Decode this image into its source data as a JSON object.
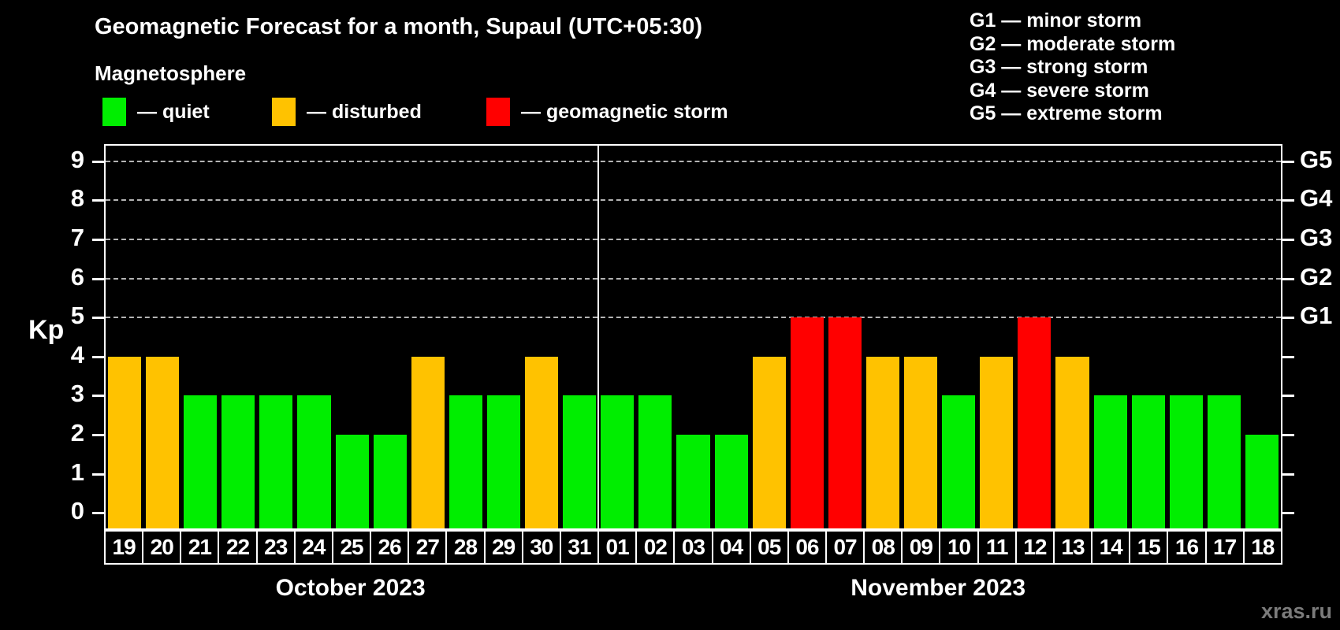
{
  "header": {
    "title": "Geomagnetic Forecast for a month, Supaul (UTC+05:30)"
  },
  "magnetosphere_legend": {
    "title": "Magnetosphere",
    "items": [
      {
        "key": "quiet",
        "label": "— quiet",
        "color": "#00ee00"
      },
      {
        "key": "disturbed",
        "label": "— disturbed",
        "color": "#ffc200"
      },
      {
        "key": "storm",
        "label": "— geomagnetic storm",
        "color": "#ff0000"
      }
    ]
  },
  "g_scale_legend": {
    "items": [
      "G1 — minor storm",
      "G2 — moderate storm",
      "G3 — strong storm",
      "G4 — severe storm",
      "G5 — extreme storm"
    ]
  },
  "chart_data": {
    "type": "bar",
    "title": "Geomagnetic Forecast for a month, Supaul (UTC+05:30)",
    "ylabel": "Kp",
    "y_ticks": [
      0,
      1,
      2,
      3,
      4,
      5,
      6,
      7,
      8,
      9
    ],
    "ylim": [
      -0.4,
      9.4
    ],
    "grid_levels": [
      5,
      6,
      7,
      8,
      9
    ],
    "grid_on": true,
    "right_axis_ticks": [
      {
        "kp": 5,
        "label": "G1"
      },
      {
        "kp": 6,
        "label": "G2"
      },
      {
        "kp": 7,
        "label": "G3"
      },
      {
        "kp": 8,
        "label": "G4"
      },
      {
        "kp": 9,
        "label": "G5"
      }
    ],
    "colors": {
      "quiet": "#00ee00",
      "disturbed": "#ffc200",
      "storm": "#ff0000"
    },
    "months": [
      {
        "label": "October 2023",
        "days": 13
      },
      {
        "label": "November 2023",
        "days": 18
      }
    ],
    "bars": [
      {
        "day": "19",
        "kp": 4,
        "status": "disturbed"
      },
      {
        "day": "20",
        "kp": 4,
        "status": "disturbed"
      },
      {
        "day": "21",
        "kp": 3,
        "status": "quiet"
      },
      {
        "day": "22",
        "kp": 3,
        "status": "quiet"
      },
      {
        "day": "23",
        "kp": 3,
        "status": "quiet"
      },
      {
        "day": "24",
        "kp": 3,
        "status": "quiet"
      },
      {
        "day": "25",
        "kp": 2,
        "status": "quiet"
      },
      {
        "day": "26",
        "kp": 2,
        "status": "quiet"
      },
      {
        "day": "27",
        "kp": 4,
        "status": "disturbed"
      },
      {
        "day": "28",
        "kp": 3,
        "status": "quiet"
      },
      {
        "day": "29",
        "kp": 3,
        "status": "quiet"
      },
      {
        "day": "30",
        "kp": 4,
        "status": "disturbed"
      },
      {
        "day": "31",
        "kp": 3,
        "status": "quiet"
      },
      {
        "day": "01",
        "kp": 3,
        "status": "quiet"
      },
      {
        "day": "02",
        "kp": 3,
        "status": "quiet"
      },
      {
        "day": "03",
        "kp": 2,
        "status": "quiet"
      },
      {
        "day": "04",
        "kp": 2,
        "status": "quiet"
      },
      {
        "day": "05",
        "kp": 4,
        "status": "disturbed"
      },
      {
        "day": "06",
        "kp": 5,
        "status": "storm"
      },
      {
        "day": "07",
        "kp": 5,
        "status": "storm"
      },
      {
        "day": "08",
        "kp": 4,
        "status": "disturbed"
      },
      {
        "day": "09",
        "kp": 4,
        "status": "disturbed"
      },
      {
        "day": "10",
        "kp": 3,
        "status": "quiet"
      },
      {
        "day": "11",
        "kp": 4,
        "status": "disturbed"
      },
      {
        "day": "12",
        "kp": 5,
        "status": "storm"
      },
      {
        "day": "13",
        "kp": 4,
        "status": "disturbed"
      },
      {
        "day": "14",
        "kp": 3,
        "status": "quiet"
      },
      {
        "day": "15",
        "kp": 3,
        "status": "quiet"
      },
      {
        "day": "16",
        "kp": 3,
        "status": "quiet"
      },
      {
        "day": "17",
        "kp": 3,
        "status": "quiet"
      },
      {
        "day": "18",
        "kp": 2,
        "status": "quiet"
      }
    ]
  },
  "watermark": "xras.ru"
}
